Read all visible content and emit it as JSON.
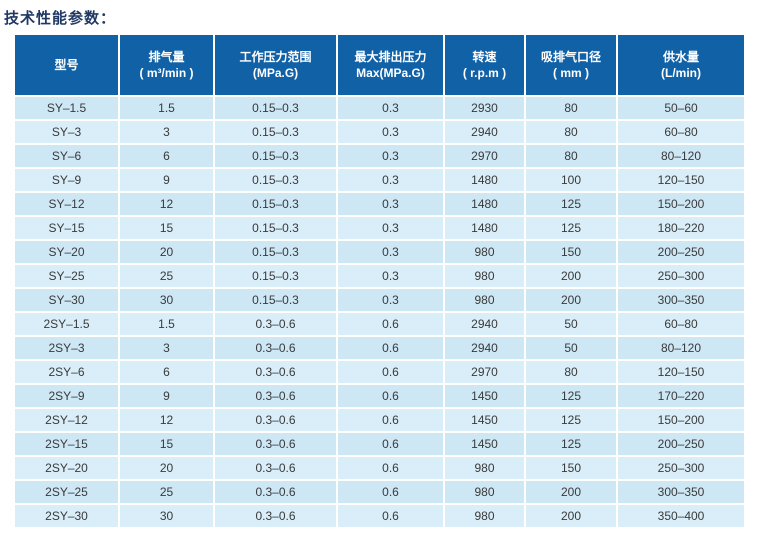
{
  "page": {
    "title": "技术性能参数："
  },
  "colors": {
    "header_bg": "#1161a7",
    "header_text": "#ffffff",
    "row_odd": "#cde7f5",
    "row_even": "#d9eef9",
    "cell_text": "#3a3a3a",
    "title_text": "#1f3864",
    "separator": "#ffffff"
  },
  "table": {
    "columns": [
      {
        "line1": "型号",
        "line2": ""
      },
      {
        "line1": "排气量",
        "line2": "( m³/min )"
      },
      {
        "line1": "工作压力范围",
        "line2": "(MPa.G)"
      },
      {
        "line1": "最大排出压力",
        "line2": "Max(MPa.G)"
      },
      {
        "line1": "转速",
        "line2": "( r.p.m )"
      },
      {
        "line1": "吸排气口径",
        "line2": "( mm )"
      },
      {
        "line1": "供水量",
        "line2": "(L/min)"
      }
    ],
    "rows": [
      [
        "SY–1.5",
        "1.5",
        "0.15–0.3",
        "0.3",
        "2930",
        "80",
        "50–60"
      ],
      [
        "SY–3",
        "3",
        "0.15–0.3",
        "0.3",
        "2940",
        "80",
        "60–80"
      ],
      [
        "SY–6",
        "6",
        "0.15–0.3",
        "0.3",
        "2970",
        "80",
        "80–120"
      ],
      [
        "SY–9",
        "9",
        "0.15–0.3",
        "0.3",
        "1480",
        "100",
        "120–150"
      ],
      [
        "SY–12",
        "12",
        "0.15–0.3",
        "0.3",
        "1480",
        "125",
        "150–200"
      ],
      [
        "SY–15",
        "15",
        "0.15–0.3",
        "0.3",
        "1480",
        "125",
        "180–220"
      ],
      [
        "SY–20",
        "20",
        "0.15–0.3",
        "0.3",
        "980",
        "150",
        "200–250"
      ],
      [
        "SY–25",
        "25",
        "0.15–0.3",
        "0.3",
        "980",
        "200",
        "250–300"
      ],
      [
        "SY–30",
        "30",
        "0.15–0.3",
        "0.3",
        "980",
        "200",
        "300–350"
      ],
      [
        "2SY–1.5",
        "1.5",
        "0.3–0.6",
        "0.6",
        "2940",
        "50",
        "60–80"
      ],
      [
        "2SY–3",
        "3",
        "0.3–0.6",
        "0.6",
        "2940",
        "50",
        "80–120"
      ],
      [
        "2SY–6",
        "6",
        "0.3–0.6",
        "0.6",
        "2970",
        "80",
        "120–150"
      ],
      [
        "2SY–9",
        "9",
        "0.3–0.6",
        "0.6",
        "1450",
        "125",
        "170–220"
      ],
      [
        "2SY–12",
        "12",
        "0.3–0.6",
        "0.6",
        "1450",
        "125",
        "150–200"
      ],
      [
        "2SY–15",
        "15",
        "0.3–0.6",
        "0.6",
        "1450",
        "125",
        "200–250"
      ],
      [
        "2SY–20",
        "20",
        "0.3–0.6",
        "0.6",
        "980",
        "150",
        "250–300"
      ],
      [
        "2SY–25",
        "25",
        "0.3–0.6",
        "0.6",
        "980",
        "200",
        "300–350"
      ],
      [
        "2SY–30",
        "30",
        "0.3–0.6",
        "0.6",
        "980",
        "200",
        "350–400"
      ]
    ]
  }
}
